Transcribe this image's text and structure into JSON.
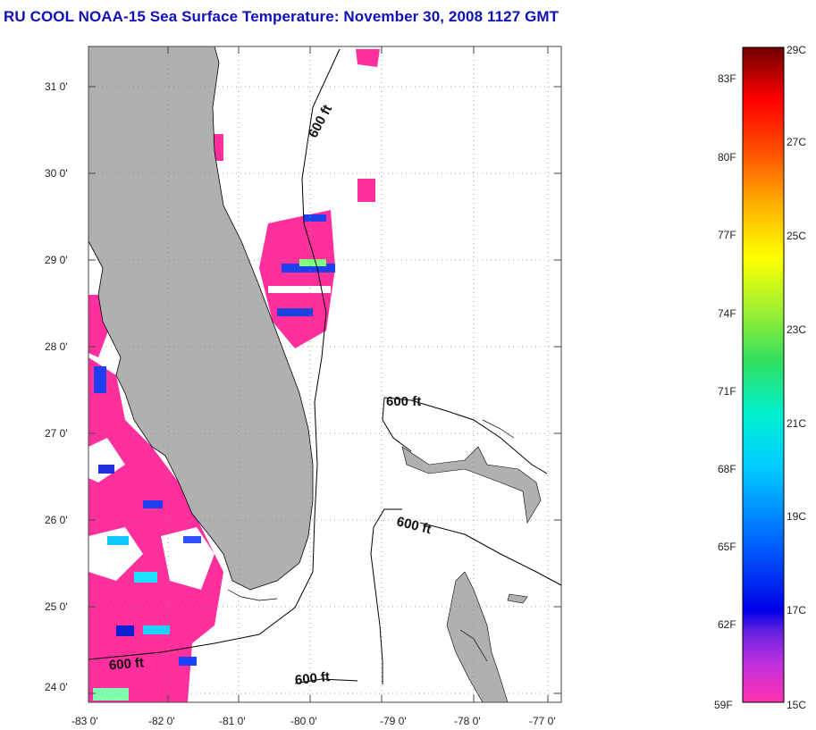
{
  "title": "RU COOL  NOAA-15  Sea Surface Temperature:  November 30, 2008 1127 GMT",
  "map": {
    "lat_labels": [
      "31 0'",
      "30 0'",
      "29 0'",
      "28 0'",
      "27 0'",
      "26 0'",
      "25 0'",
      "24 0'"
    ],
    "lon_labels": [
      "-83 0'",
      "-82 0'",
      "-81 0'",
      "-80 0'",
      "-79 0'",
      "-78 0'",
      "-77 0'"
    ],
    "contour_labels": [
      "600 ft",
      "600 ft",
      "600 ft",
      "600 ft",
      "600 ft"
    ],
    "colors": {
      "land": "#b0b0b0",
      "cold_sst": "#ff2f9e",
      "contour": "#000000"
    }
  },
  "colorbar": {
    "fahrenheit_labels": [
      "83F",
      "80F",
      "77F",
      "74F",
      "71F",
      "68F",
      "65F",
      "62F",
      "59F"
    ],
    "celsius_labels": [
      "29C",
      "27C",
      "25C",
      "23C",
      "21C",
      "19C",
      "17C",
      "15C"
    ]
  }
}
